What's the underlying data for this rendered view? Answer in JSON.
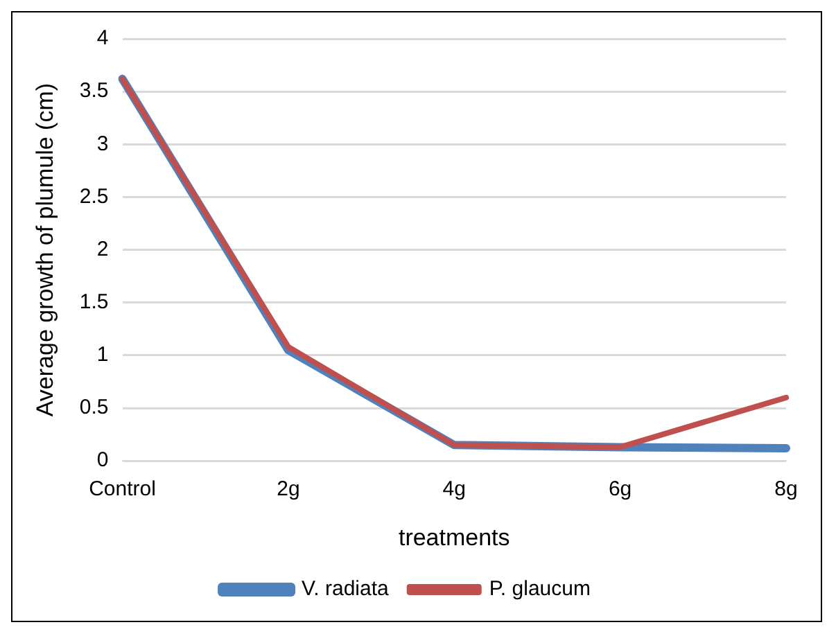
{
  "chart_data": {
    "type": "line",
    "xlabel": "treatments",
    "ylabel": "Average growth of plumule (cm)",
    "categories": [
      "Control",
      "2g",
      "4g",
      "6g",
      "8g"
    ],
    "series": [
      {
        "name": "V. radiata",
        "color": "#4f81bd",
        "values": [
          3.62,
          1.05,
          0.15,
          0.13,
          0.12
        ]
      },
      {
        "name": "P. glaucum",
        "color": "#c0504d",
        "values": [
          3.62,
          1.08,
          0.15,
          0.13,
          0.6
        ]
      }
    ],
    "ylim": [
      0,
      4
    ],
    "yticks": [
      0,
      0.5,
      1,
      1.5,
      2,
      2.5,
      3,
      3.5,
      4
    ],
    "grid": "y",
    "legend": "bottom",
    "marker": "none",
    "line_style": "solid"
  }
}
